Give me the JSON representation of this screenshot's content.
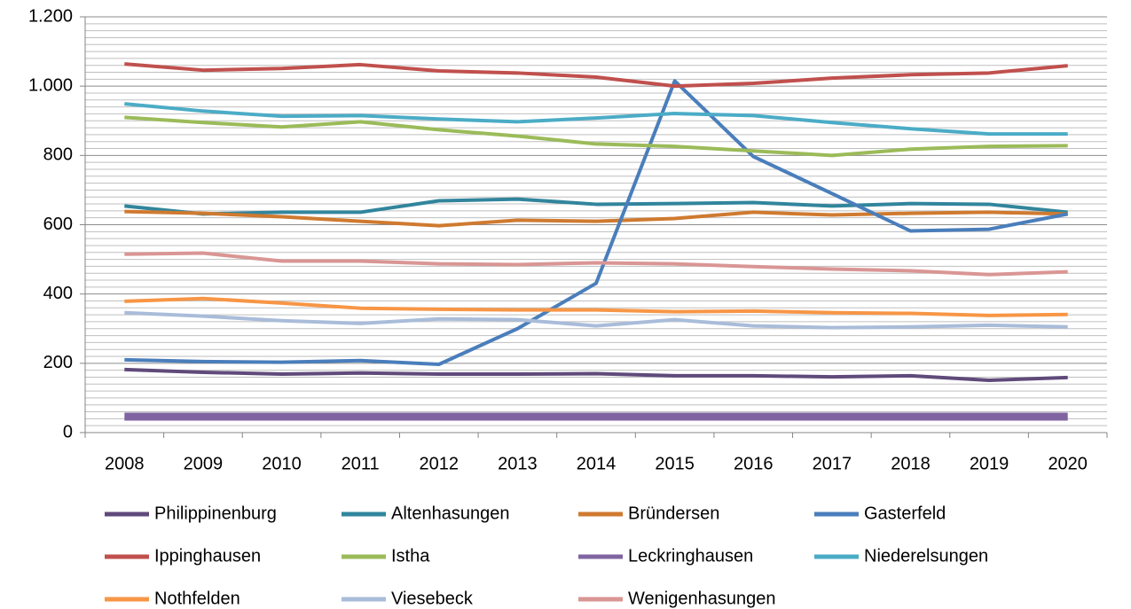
{
  "chart_data": {
    "type": "line",
    "categories": [
      "2008",
      "2009",
      "2010",
      "2011",
      "2012",
      "2013",
      "2014",
      "2015",
      "2016",
      "2017",
      "2018",
      "2019",
      "2020"
    ],
    "series": [
      {
        "name": "Philippinenburg",
        "color": "#604a7b",
        "values": [
          182,
          174,
          169,
          172,
          169,
          169,
          170,
          164,
          164,
          161,
          164,
          151,
          159
        ]
      },
      {
        "name": "Altenhasungen",
        "color": "#31859c",
        "values": [
          654,
          631,
          636,
          636,
          669,
          674,
          659,
          661,
          664,
          654,
          661,
          659,
          636
        ]
      },
      {
        "name": "Bründersen",
        "color": "#cf7a30",
        "values": [
          638,
          633,
          623,
          610,
          597,
          613,
          610,
          618,
          636,
          628,
          633,
          636,
          631
        ]
      },
      {
        "name": "Gasterfeld",
        "color": "#4a7ebb",
        "values": [
          210,
          205,
          203,
          208,
          197,
          300,
          431,
          1015,
          797,
          690,
          582,
          587,
          631
        ]
      },
      {
        "name": "Ippinghausen",
        "color": "#c0504d",
        "values": [
          1064,
          1046,
          1051,
          1062,
          1044,
          1038,
          1026,
          1000,
          1008,
          1023,
          1033,
          1038,
          1059
        ]
      },
      {
        "name": "Istha",
        "color": "#9bbb59",
        "values": [
          910,
          895,
          882,
          897,
          874,
          856,
          833,
          826,
          813,
          800,
          818,
          826,
          828
        ]
      },
      {
        "name": "Leckringhausen",
        "color": "#8064a2",
        "values": [
          46,
          46,
          46,
          46,
          46,
          46,
          46,
          46,
          46,
          46,
          46,
          46,
          46
        ]
      },
      {
        "name": "Niederelsungen",
        "color": "#4bacc6",
        "values": [
          949,
          928,
          913,
          915,
          905,
          897,
          908,
          921,
          915,
          895,
          877,
          862,
          862
        ]
      },
      {
        "name": "Nothfelden",
        "color": "#f79646",
        "values": [
          379,
          387,
          374,
          359,
          356,
          354,
          354,
          349,
          351,
          346,
          344,
          338,
          341
        ]
      },
      {
        "name": "Viesebeck",
        "color": "#a9bcd9",
        "values": [
          346,
          336,
          323,
          315,
          328,
          326,
          308,
          326,
          308,
          303,
          305,
          310,
          305
        ]
      },
      {
        "name": "Wenigenhasungen",
        "color": "#d99694",
        "values": [
          515,
          518,
          495,
          495,
          487,
          485,
          490,
          487,
          479,
          472,
          467,
          456,
          464
        ]
      }
    ],
    "ylim": [
      0,
      1200
    ],
    "yticks": [
      0,
      200,
      400,
      600,
      800,
      {
        "value": 1000,
        "label": "1.000"
      },
      {
        "value": 1200,
        "label": "1.200"
      }
    ],
    "minor_yticks": [
      20,
      40,
      60,
      80,
      100,
      120,
      140,
      160,
      180,
      220,
      240,
      260,
      280,
      300,
      320,
      340,
      360,
      380,
      420,
      440,
      460,
      480,
      500,
      520,
      540,
      560,
      580,
      620,
      640,
      660,
      680,
      700,
      720,
      740,
      760,
      780,
      820,
      840,
      860,
      880,
      900,
      920,
      940,
      960,
      980,
      1020,
      1040,
      1060,
      1080,
      1100,
      1120,
      1140,
      1160,
      1180
    ],
    "grid": true,
    "legend": "bottom"
  }
}
